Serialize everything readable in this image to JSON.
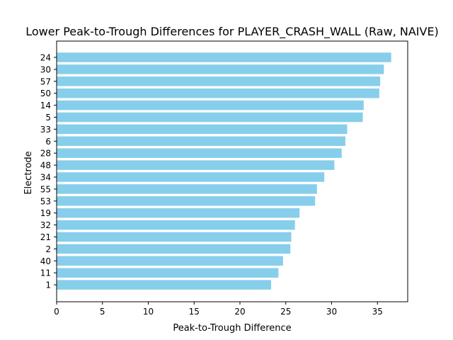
{
  "chart_data": {
    "type": "bar",
    "orientation": "horizontal",
    "title": "Lower Peak-to-Trough Differences for PLAYER_CRASH_WALL (Raw, NAIVE)",
    "xlabel": "Peak-to-Trough Difference",
    "ylabel": "Electrode",
    "xlim": [
      0,
      38.3
    ],
    "xticks": [
      0,
      5,
      10,
      15,
      20,
      25,
      30,
      35
    ],
    "grid": false,
    "legend": "none",
    "bar_color": "#87CEEB",
    "categories": [
      "24",
      "30",
      "57",
      "50",
      "14",
      "5",
      "33",
      "6",
      "28",
      "48",
      "34",
      "55",
      "53",
      "19",
      "32",
      "21",
      "2",
      "40",
      "11",
      "1"
    ],
    "values": [
      36.5,
      35.7,
      35.3,
      35.2,
      33.5,
      33.4,
      31.7,
      31.5,
      31.1,
      30.3,
      29.2,
      28.4,
      28.2,
      26.5,
      26.0,
      25.6,
      25.5,
      24.7,
      24.2,
      23.4
    ]
  }
}
